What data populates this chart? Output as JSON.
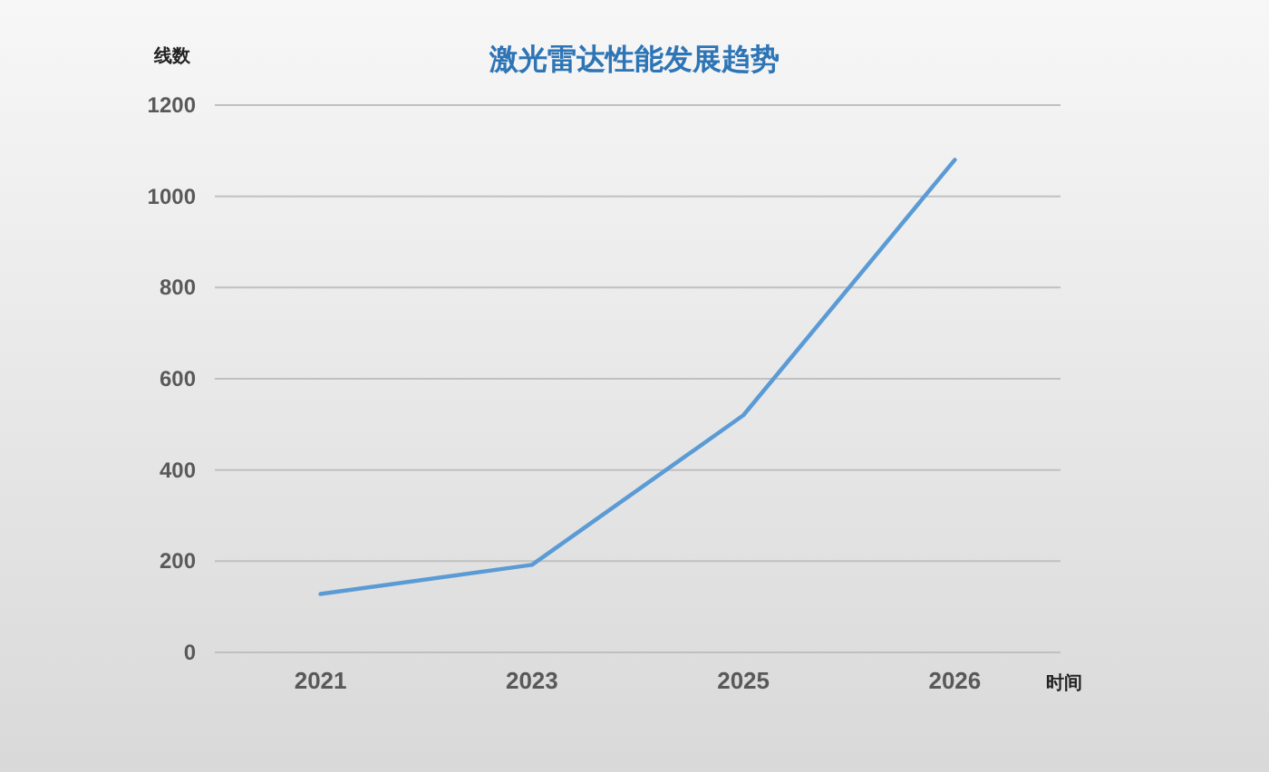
{
  "chart_data": {
    "type": "line",
    "title": "激光雷达性能发展趋势",
    "xlabel": "时间",
    "ylabel": "线数",
    "categories": [
      "2021",
      "2023",
      "2025",
      "2026"
    ],
    "values": [
      128,
      192,
      520,
      1080
    ],
    "color": "#5b9bd5",
    "ylim": [
      0,
      1200
    ],
    "yticks": [
      0,
      200,
      400,
      600,
      800,
      1000,
      1200
    ],
    "grid": "y"
  }
}
